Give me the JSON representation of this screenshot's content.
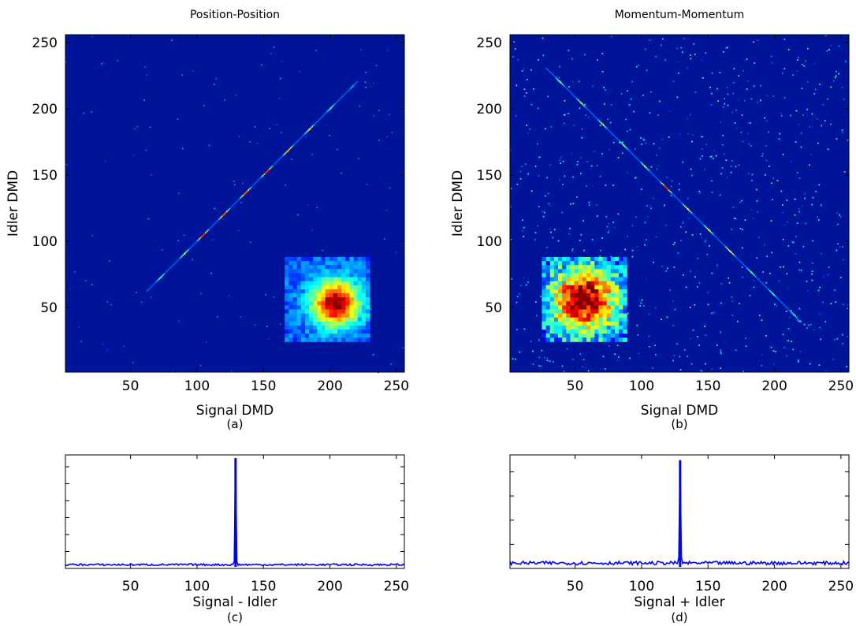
{
  "chart_data": [
    {
      "id": "a",
      "type": "heatmap",
      "title": "Position-Position",
      "xlabel": "Signal DMD",
      "ylabel": "Idler DMD",
      "caption": "(a)",
      "xlim": [
        1,
        256
      ],
      "ylim": [
        1,
        256
      ],
      "xticks": [
        50,
        100,
        150,
        200,
        250
      ],
      "yticks": [
        50,
        100,
        150,
        200,
        250
      ],
      "colormap": "jet",
      "background_color": "#00149a",
      "correlation": "diagonal",
      "diagonal_peaks": [
        {
          "x": 72,
          "v": 0.45
        },
        {
          "x": 90,
          "v": 0.55
        },
        {
          "x": 104,
          "v": 0.85
        },
        {
          "x": 120,
          "v": 0.8
        },
        {
          "x": 136,
          "v": 0.8
        },
        {
          "x": 152,
          "v": 0.85
        },
        {
          "x": 168,
          "v": 0.7
        },
        {
          "x": 184,
          "v": 0.6
        },
        {
          "x": 200,
          "v": 0.45
        },
        {
          "x": 216,
          "v": 0.3
        }
      ],
      "inset": {
        "x_range": [
          166,
          230
        ],
        "y_range": [
          24,
          88
        ],
        "blob_center": [
          0.6,
          0.55
        ],
        "blob_width": 0.26,
        "shape": "compact spot"
      }
    },
    {
      "id": "b",
      "type": "heatmap",
      "title": "Momentum-Momentum",
      "xlabel": "Signal DMD",
      "ylabel": "Idler DMD",
      "caption": "(b)",
      "xlim": [
        1,
        256
      ],
      "ylim": [
        1,
        256
      ],
      "xticks": [
        50,
        100,
        150,
        200,
        250
      ],
      "yticks": [
        50,
        100,
        150,
        200,
        250
      ],
      "colormap": "jet",
      "background_color": "#00149a",
      "correlation": "anti-diagonal",
      "anti_diagonal_sum": 258,
      "diagonal_peaks": [
        {
          "x": 38,
          "v": 0.5
        },
        {
          "x": 54,
          "v": 0.55
        },
        {
          "x": 70,
          "v": 0.55
        },
        {
          "x": 86,
          "v": 0.5
        },
        {
          "x": 102,
          "v": 0.55
        },
        {
          "x": 118,
          "v": 0.85
        },
        {
          "x": 134,
          "v": 0.6
        },
        {
          "x": 150,
          "v": 0.6
        },
        {
          "x": 166,
          "v": 0.65
        },
        {
          "x": 182,
          "v": 0.5
        },
        {
          "x": 198,
          "v": 0.45
        },
        {
          "x": 214,
          "v": 0.4
        }
      ],
      "inset": {
        "x_range": [
          25,
          89
        ],
        "y_range": [
          24,
          88
        ],
        "blob_center": [
          0.5,
          0.5
        ],
        "blob_width": 0.36,
        "shape": "broad speckled spot"
      }
    },
    {
      "id": "c",
      "type": "line",
      "xlabel": "Signal - Idler",
      "caption": "(c)",
      "xlim": [
        1,
        256
      ],
      "xticks": [
        50,
        100,
        150,
        200,
        250
      ],
      "yaxis": "unlabeled (6 minor ticks)",
      "baseline": 0.02,
      "peak_x": 129,
      "peak_value": 1.0,
      "color": "#0000ff"
    },
    {
      "id": "d",
      "type": "line",
      "xlabel": "Signal + Idler",
      "caption": "(d)",
      "xlim": [
        1,
        256
      ],
      "xticks": [
        50,
        100,
        150,
        200,
        250
      ],
      "yaxis": "unlabeled (4 minor ticks)",
      "baseline": 0.035,
      "peak_x": 129,
      "peak_value": 0.98,
      "color": "#0000ff"
    }
  ]
}
